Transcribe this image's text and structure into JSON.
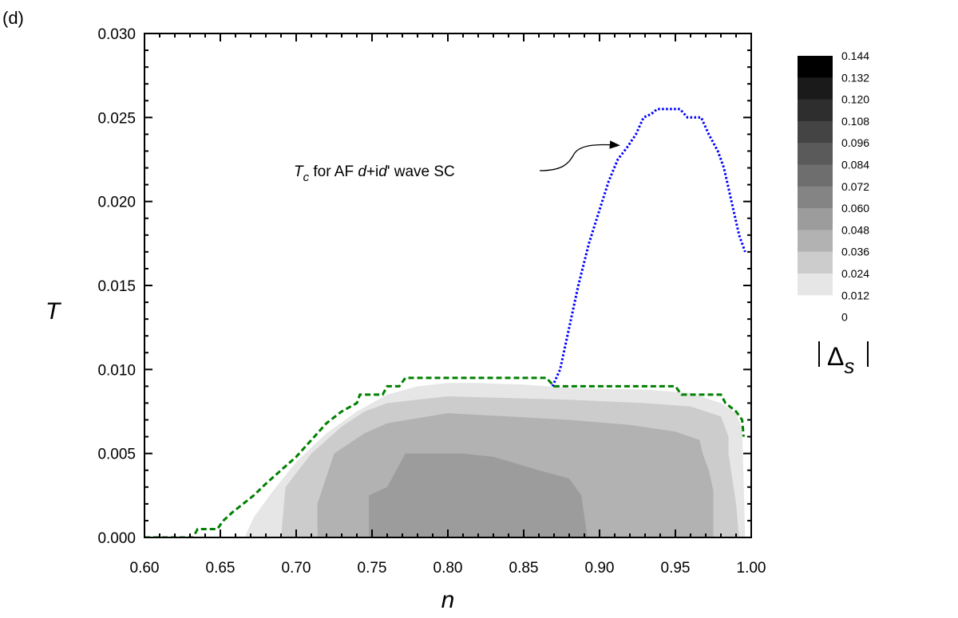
{
  "panel_label": "(d)",
  "chart_data": {
    "type": "heatmap",
    "xlabel": "n",
    "ylabel": "T",
    "xlim": [
      0.6,
      1.0
    ],
    "ylim": [
      0.0,
      0.03
    ],
    "x_ticks": [
      "0.60",
      "0.65",
      "0.70",
      "0.75",
      "0.80",
      "0.85",
      "0.90",
      "0.95",
      "1.00"
    ],
    "y_ticks": [
      "0.000",
      "0.005",
      "0.010",
      "0.015",
      "0.020",
      "0.025",
      "0.030"
    ],
    "legend": {
      "title_symbol": "Δ",
      "title_subscript": "s",
      "levels": [
        "0.144",
        "0.132",
        "0.120",
        "0.108",
        "0.096",
        "0.084",
        "0.072",
        "0.060",
        "0.048",
        "0.036",
        "0.024",
        "0.012",
        "0"
      ],
      "colors": [
        "#000000",
        "#1a1a1a",
        "#2e2e2e",
        "#444444",
        "#5a5a5a",
        "#6e6e6e",
        "#848484",
        "#9c9c9c",
        "#b2b2b2",
        "#cccccc",
        "#e6e6e6",
        "#ffffff"
      ]
    },
    "contours": [
      {
        "level": "0.012",
        "color": "#e6e6e6",
        "points": [
          [
            0.666,
            0.0
          ],
          [
            0.672,
            0.0012
          ],
          [
            0.685,
            0.0028
          ],
          [
            0.7,
            0.0045
          ],
          [
            0.72,
            0.0062
          ],
          [
            0.74,
            0.0075
          ],
          [
            0.76,
            0.0085
          ],
          [
            0.78,
            0.009
          ],
          [
            0.8,
            0.0092
          ],
          [
            0.82,
            0.0092
          ],
          [
            0.85,
            0.0091
          ],
          [
            0.88,
            0.0089
          ],
          [
            0.93,
            0.0088
          ],
          [
            0.96,
            0.0086
          ],
          [
            0.98,
            0.008
          ],
          [
            0.99,
            0.0074
          ],
          [
            0.994,
            0.0065
          ],
          [
            0.996,
            0.0
          ]
        ]
      },
      {
        "level": "0.024",
        "color": "#cccccc",
        "points": [
          [
            0.69,
            0.0
          ],
          [
            0.693,
            0.003
          ],
          [
            0.71,
            0.005
          ],
          [
            0.73,
            0.0066
          ],
          [
            0.745,
            0.0075
          ],
          [
            0.76,
            0.008
          ],
          [
            0.8,
            0.0084
          ],
          [
            0.84,
            0.0083
          ],
          [
            0.88,
            0.0082
          ],
          [
            0.93,
            0.008
          ],
          [
            0.96,
            0.0078
          ],
          [
            0.98,
            0.0072
          ],
          [
            0.985,
            0.006
          ],
          [
            0.985,
            0.005
          ],
          [
            0.99,
            0.002
          ],
          [
            0.992,
            0.0
          ]
        ]
      },
      {
        "level": "0.036",
        "color": "#b2b2b2",
        "points": [
          [
            0.714,
            0.0
          ],
          [
            0.714,
            0.002
          ],
          [
            0.725,
            0.005
          ],
          [
            0.745,
            0.0062
          ],
          [
            0.76,
            0.0068
          ],
          [
            0.8,
            0.0074
          ],
          [
            0.84,
            0.0072
          ],
          [
            0.88,
            0.007
          ],
          [
            0.92,
            0.0067
          ],
          [
            0.95,
            0.0063
          ],
          [
            0.966,
            0.0058
          ],
          [
            0.968,
            0.005
          ],
          [
            0.972,
            0.004
          ],
          [
            0.975,
            0.0028
          ],
          [
            0.975,
            0.0
          ]
        ]
      },
      {
        "level": "0.048",
        "color": "#9c9c9c",
        "points": [
          [
            0.748,
            0.0
          ],
          [
            0.748,
            0.0025
          ],
          [
            0.76,
            0.003
          ],
          [
            0.772,
            0.005
          ],
          [
            0.79,
            0.005
          ],
          [
            0.81,
            0.005
          ],
          [
            0.83,
            0.0048
          ],
          [
            0.86,
            0.004
          ],
          [
            0.88,
            0.0035
          ],
          [
            0.888,
            0.0025
          ],
          [
            0.892,
            0.0
          ]
        ]
      }
    ],
    "series": [
      {
        "color": "#008000",
        "style": "dashed",
        "points": [
          [
            0.6,
            0.0
          ],
          [
            0.632,
            0.0
          ],
          [
            0.635,
            0.0005
          ],
          [
            0.648,
            0.0005
          ],
          [
            0.652,
            0.001
          ],
          [
            0.658,
            0.0015
          ],
          [
            0.665,
            0.002
          ],
          [
            0.672,
            0.0025
          ],
          [
            0.68,
            0.0032
          ],
          [
            0.69,
            0.004
          ],
          [
            0.7,
            0.0048
          ],
          [
            0.71,
            0.0058
          ],
          [
            0.72,
            0.0068
          ],
          [
            0.73,
            0.0075
          ],
          [
            0.74,
            0.008
          ],
          [
            0.742,
            0.0085
          ],
          [
            0.757,
            0.0085
          ],
          [
            0.76,
            0.009
          ],
          [
            0.768,
            0.009
          ],
          [
            0.772,
            0.0095
          ],
          [
            0.865,
            0.0095
          ],
          [
            0.87,
            0.009
          ],
          [
            0.95,
            0.009
          ],
          [
            0.954,
            0.0085
          ],
          [
            0.98,
            0.0085
          ],
          [
            0.983,
            0.008
          ],
          [
            0.99,
            0.0075
          ],
          [
            0.994,
            0.007
          ],
          [
            0.995,
            0.006
          ]
        ]
      },
      {
        "color": "#0000ff",
        "style": "dotted",
        "points": [
          [
            0.869,
            0.009
          ],
          [
            0.874,
            0.01
          ],
          [
            0.88,
            0.0125
          ],
          [
            0.886,
            0.015
          ],
          [
            0.893,
            0.0175
          ],
          [
            0.9,
            0.0195
          ],
          [
            0.906,
            0.0212
          ],
          [
            0.912,
            0.0225
          ],
          [
            0.918,
            0.0232
          ],
          [
            0.924,
            0.024
          ],
          [
            0.929,
            0.025
          ],
          [
            0.934,
            0.0252
          ],
          [
            0.938,
            0.0255
          ],
          [
            0.953,
            0.0255
          ],
          [
            0.958,
            0.025
          ],
          [
            0.967,
            0.025
          ],
          [
            0.972,
            0.024
          ],
          [
            0.978,
            0.023
          ],
          [
            0.982,
            0.022
          ],
          [
            0.987,
            0.02
          ],
          [
            0.992,
            0.018
          ],
          [
            0.996,
            0.017
          ]
        ]
      }
    ],
    "annotation": {
      "parts": [
        {
          "text": "T",
          "italic": true
        },
        {
          "text": "c",
          "italic": true,
          "sub": true
        },
        {
          "text": " for AF "
        },
        {
          "text": "d",
          "italic": true
        },
        {
          "text": "+i"
        },
        {
          "text": "d",
          "italic": true
        },
        {
          "text": "' wave SC"
        }
      ],
      "arrow_target": [
        0.915,
        0.0232
      ]
    }
  }
}
